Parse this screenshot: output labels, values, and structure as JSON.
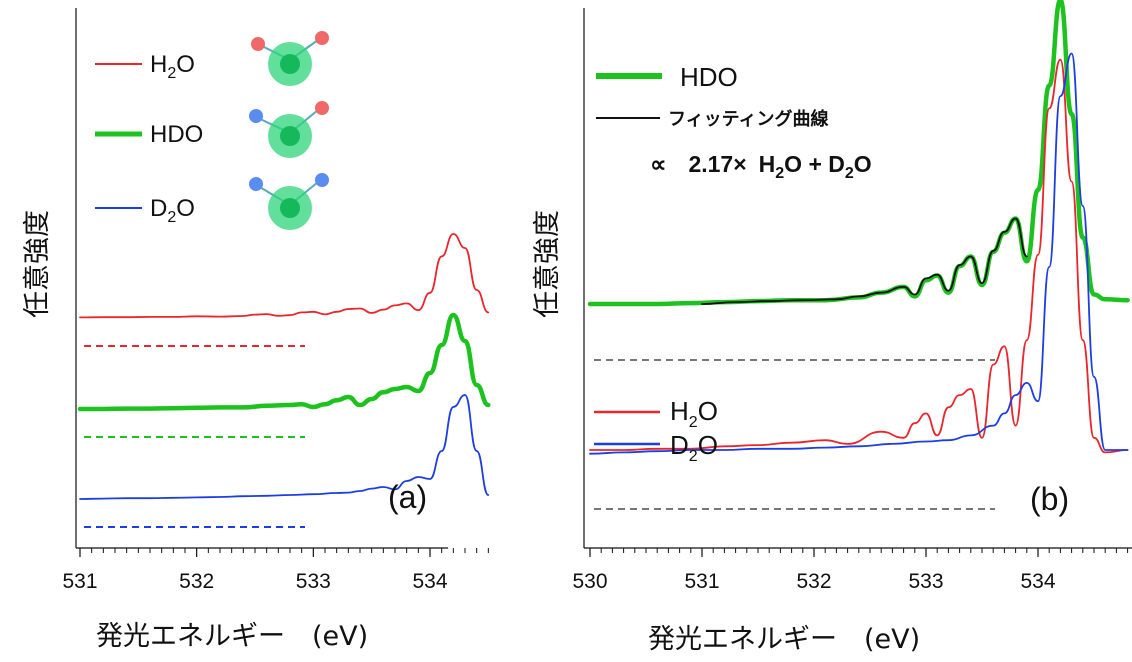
{
  "chart_data": [
    {
      "panel": "a",
      "type": "line",
      "panel_label": "(a)",
      "xlabel": "発光エネルギー　(eV)",
      "ylabel": "任意強度",
      "xlim": [
        530.95,
        534.5
      ],
      "xticks": [
        531,
        532,
        533,
        534
      ],
      "tick_labels": [
        "531",
        "532",
        "533",
        "534"
      ],
      "yticks": false,
      "legend_position": "top-left",
      "colors": {
        "H2O": "#e8262c",
        "HDO": "#1ec21e",
        "D2O": "#1e3fe0"
      },
      "series": [
        {
          "name": "H2O",
          "label_main": "H",
          "label_sub": "2",
          "label_end": "O",
          "color": "#e8262c",
          "style": "thin",
          "offset_note": "upper",
          "x": [
            531.0,
            531.2,
            531.4,
            531.6,
            531.8,
            532.0,
            532.2,
            532.4,
            532.5,
            532.6,
            532.7,
            532.8,
            532.9,
            533.0,
            533.1,
            533.2,
            533.3,
            533.4,
            533.5,
            533.6,
            533.7,
            533.8,
            533.9,
            534.0,
            534.1,
            534.2,
            534.3,
            534.4,
            534.5
          ],
          "y": [
            0.02,
            0.03,
            0.03,
            0.04,
            0.04,
            0.06,
            0.05,
            0.07,
            0.12,
            0.14,
            0.08,
            0.1,
            0.2,
            0.22,
            0.13,
            0.22,
            0.32,
            0.34,
            0.18,
            0.3,
            0.45,
            0.52,
            0.28,
            0.9,
            2.2,
            3.0,
            2.5,
            1.0,
            0.2
          ]
        },
        {
          "name": "HDO",
          "label": "HDO",
          "color": "#1ec21e",
          "style": "thick",
          "x": [
            531.0,
            531.2,
            531.4,
            531.6,
            531.8,
            532.0,
            532.2,
            532.4,
            532.6,
            532.8,
            532.9,
            533.0,
            533.1,
            533.2,
            533.3,
            533.4,
            533.5,
            533.6,
            533.7,
            533.8,
            533.9,
            534.0,
            534.1,
            534.2,
            534.3,
            534.4,
            534.5
          ],
          "y": [
            0.0,
            0.0,
            0.01,
            0.01,
            0.02,
            0.03,
            0.04,
            0.04,
            0.08,
            0.1,
            0.12,
            0.05,
            0.12,
            0.22,
            0.3,
            0.1,
            0.25,
            0.42,
            0.5,
            0.55,
            0.45,
            0.9,
            1.6,
            2.35,
            1.7,
            0.6,
            0.1
          ]
        },
        {
          "name": "D2O",
          "label_main": "D",
          "label_sub": "2",
          "label_end": "O",
          "color": "#1e3fe0",
          "style": "thin",
          "x": [
            531.0,
            531.2,
            531.4,
            531.6,
            531.8,
            532.0,
            532.2,
            532.4,
            532.6,
            532.8,
            533.0,
            533.2,
            533.3,
            533.4,
            533.5,
            533.6,
            533.7,
            533.8,
            533.9,
            534.0,
            534.1,
            534.2,
            534.3,
            534.4,
            534.5
          ],
          "y": [
            0.0,
            0.01,
            0.02,
            0.02,
            0.03,
            0.04,
            0.05,
            0.07,
            0.08,
            0.1,
            0.12,
            0.15,
            0.16,
            0.2,
            0.26,
            0.3,
            0.24,
            0.45,
            0.55,
            0.5,
            1.2,
            2.3,
            2.6,
            1.2,
            0.1
          ]
        }
      ]
    },
    {
      "panel": "b",
      "type": "line",
      "panel_label": "(b)",
      "xlabel": "発光エネルギー　(eV)",
      "ylabel": "任意強度",
      "xlim": [
        529.95,
        534.85
      ],
      "xticks": [
        530,
        531,
        532,
        533,
        534
      ],
      "tick_labels": [
        "530",
        "531",
        "532",
        "533",
        "534"
      ],
      "yticks": false,
      "legend_position": "top-left / bottom-left",
      "fit_label": "フィッティング曲線",
      "formula": {
        "prefix": "∝",
        "coef": "2.17×",
        "t1": "H",
        "t1sub": "2",
        "t1end": "O + D",
        "t2sub": "2",
        "t2end": "O"
      },
      "series": [
        {
          "name": "HDO",
          "label": "HDO",
          "color": "#1ec21e",
          "style": "thick",
          "x": [
            530.0,
            530.3,
            530.6,
            530.9,
            531.2,
            531.5,
            531.8,
            532.1,
            532.4,
            532.6,
            532.8,
            532.9,
            533.0,
            533.1,
            533.2,
            533.3,
            533.4,
            533.5,
            533.6,
            533.7,
            533.8,
            533.9,
            534.0,
            534.1,
            534.2,
            534.3,
            534.4,
            534.5,
            534.6,
            534.8
          ],
          "y": [
            0.0,
            0.0,
            0.0,
            0.01,
            0.02,
            0.03,
            0.04,
            0.04,
            0.07,
            0.12,
            0.18,
            0.08,
            0.25,
            0.3,
            0.12,
            0.4,
            0.5,
            0.2,
            0.55,
            0.75,
            0.9,
            0.45,
            1.2,
            2.3,
            3.2,
            2.0,
            0.7,
            0.1,
            0.05,
            0.04
          ]
        },
        {
          "name": "fit",
          "label": "フィッティング曲線",
          "color": "#111111",
          "style": "thin",
          "x": [
            531.0,
            531.3,
            531.6,
            531.9,
            532.2,
            532.4,
            532.6,
            532.8,
            532.9,
            533.0,
            533.1,
            533.2,
            533.3,
            533.4,
            533.5,
            533.6,
            533.7,
            533.8,
            533.9
          ],
          "y": [
            0.0,
            0.02,
            0.03,
            0.04,
            0.05,
            0.08,
            0.12,
            0.18,
            0.1,
            0.27,
            0.31,
            0.14,
            0.41,
            0.5,
            0.22,
            0.56,
            0.76,
            0.9,
            0.5
          ]
        },
        {
          "name": "H2O",
          "label_main": "H",
          "label_sub": "2",
          "label_end": "O",
          "color": "#e8262c",
          "style": "thin",
          "x": [
            530.0,
            530.3,
            530.6,
            530.9,
            531.2,
            531.5,
            531.8,
            532.1,
            532.3,
            532.6,
            532.8,
            532.9,
            533.0,
            533.1,
            533.2,
            533.3,
            533.4,
            533.5,
            533.6,
            533.7,
            533.8,
            533.9,
            534.0,
            534.1,
            534.2,
            534.3,
            534.4,
            534.5,
            534.6,
            534.8
          ],
          "y": [
            0.0,
            0.0,
            0.01,
            0.01,
            0.03,
            0.04,
            0.06,
            0.08,
            0.05,
            0.15,
            0.1,
            0.22,
            0.3,
            0.12,
            0.35,
            0.45,
            0.5,
            0.1,
            0.7,
            0.85,
            0.2,
            0.9,
            1.6,
            2.8,
            3.2,
            2.2,
            0.9,
            0.1,
            -0.02,
            0.0
          ]
        },
        {
          "name": "D2O",
          "label_main": "D",
          "label_sub": "2",
          "label_end": "O",
          "color": "#1e3fe0",
          "style": "thin",
          "x": [
            530.0,
            530.3,
            530.6,
            530.9,
            531.2,
            531.5,
            531.8,
            532.1,
            532.4,
            532.7,
            533.0,
            533.2,
            533.4,
            533.6,
            533.7,
            533.8,
            533.9,
            534.0,
            534.1,
            534.2,
            534.3,
            534.4,
            534.5,
            534.6,
            534.8
          ],
          "y": [
            -0.03,
            -0.02,
            -0.01,
            0.0,
            0.0,
            0.01,
            0.01,
            0.02,
            0.03,
            0.05,
            0.07,
            0.08,
            0.12,
            0.2,
            0.3,
            0.45,
            0.55,
            0.4,
            1.5,
            2.9,
            3.25,
            2.0,
            0.6,
            0.0,
            0.0
          ]
        }
      ]
    }
  ]
}
